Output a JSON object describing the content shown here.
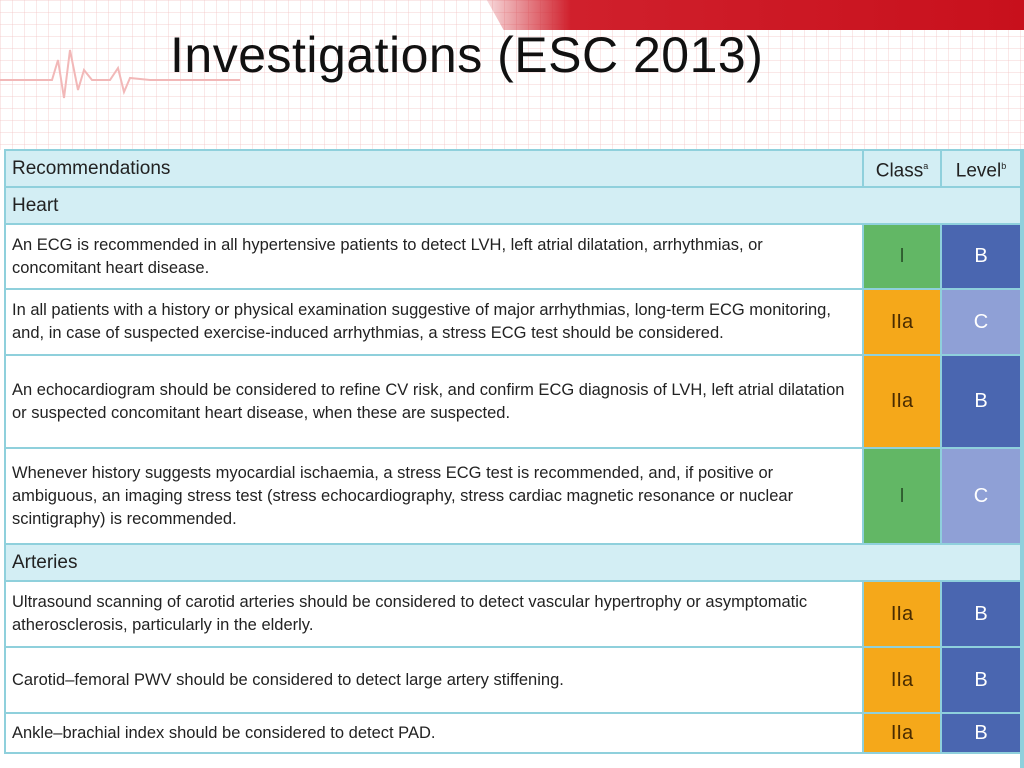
{
  "title": "Investigations (ESC 2013)",
  "header": {
    "recommendations": "Recommendations",
    "class": "Class",
    "class_sup": "a",
    "level": "Level",
    "level_sup": "b"
  },
  "colors": {
    "class_I": "#62b765",
    "class_IIa": "#f5a81a",
    "level_B": "#4a66b0",
    "level_C": "#8fa0d6",
    "header_bg": "#d3eef4",
    "border": "#8fd0dc",
    "accent_red": "#c8101c"
  },
  "sections": [
    {
      "name": "Heart",
      "rows": [
        {
          "text": "An ECG is recommended in all hypertensive patients to detect LVH, left atrial dilatation, arrhythmias, or concomitant heart disease.",
          "class": "I",
          "level": "B"
        },
        {
          "text": "In all patients with a history or physical examination suggestive of major arrhythmias, long-term ECG monitoring, and, in case of suspected exercise-induced arrhythmias, a stress ECG test should be considered.",
          "class": "IIa",
          "level": "C"
        },
        {
          "text": "An echocardiogram should be considered to refine CV risk, and confirm ECG diagnosis of LVH, left atrial dilatation or suspected concomitant heart disease, when these are suspected.",
          "class": "IIa",
          "level": "B"
        },
        {
          "text": "Whenever history suggests myocardial ischaemia, a stress ECG test is recommended, and, if positive or ambiguous, an imaging stress test (stress echocardiography, stress cardiac magnetic resonance or nuclear scintigraphy) is recommended.",
          "class": "I",
          "level": "C"
        }
      ]
    },
    {
      "name": "Arteries",
      "rows": [
        {
          "text": "Ultrasound scanning of carotid arteries should be considered to detect vascular hypertrophy or asymptomatic atherosclerosis, particularly in the elderly.",
          "class": "IIa",
          "level": "B"
        },
        {
          "text": "Carotid–femoral PWV should be considered to detect large artery stiffening.",
          "class": "IIa",
          "level": "B"
        },
        {
          "text": "Ankle–brachial index should be considered to detect PAD.",
          "class": "IIa",
          "level": "B"
        }
      ]
    }
  ]
}
